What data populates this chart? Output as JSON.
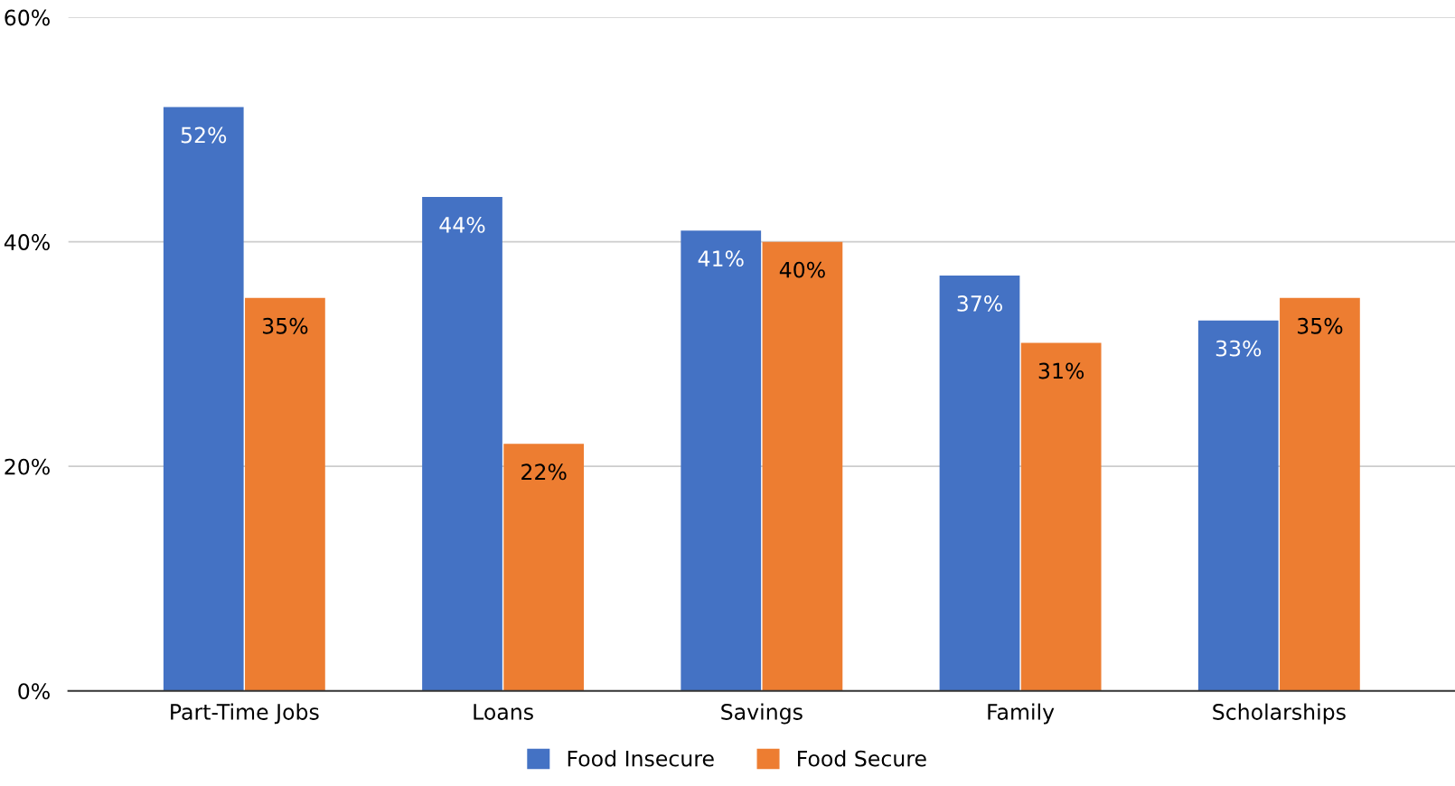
{
  "chart_data": {
    "type": "bar",
    "categories": [
      "Part-Time Jobs",
      "Loans",
      "Savings",
      "Family",
      "Scholarships"
    ],
    "series": [
      {
        "name": "Food Insecure",
        "color": "#4472c4",
        "values": [
          52,
          44,
          41,
          37,
          33
        ],
        "value_labels": [
          "52%",
          "44%",
          "41%",
          "37%",
          "33%"
        ]
      },
      {
        "name": "Food Secure",
        "color": "#ed7d31",
        "values": [
          35,
          22,
          40,
          31,
          35
        ],
        "value_labels": [
          "35%",
          "22%",
          "40%",
          "31%",
          "35%"
        ]
      }
    ],
    "ylim": [
      0,
      60
    ],
    "yticks": [
      {
        "value": 0,
        "label": "0%"
      },
      {
        "value": 20,
        "label": "20%"
      },
      {
        "value": 40,
        "label": "40%"
      },
      {
        "value": 60,
        "label": "60%"
      }
    ],
    "grid": "y",
    "legend": "bottom"
  }
}
